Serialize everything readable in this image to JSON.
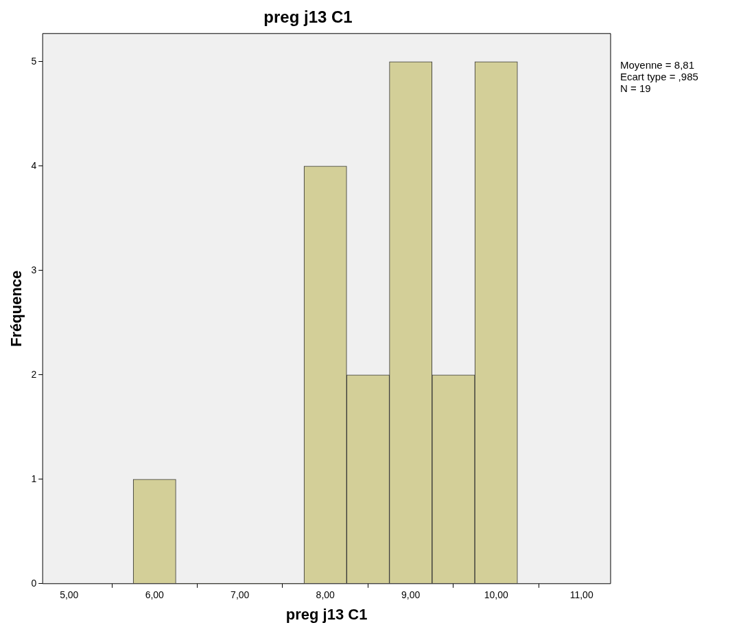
{
  "chart_data": {
    "type": "histogram",
    "title": "preg j13 C1",
    "xlabel": "preg j13 C1",
    "ylabel": "Fréquence",
    "bins": [
      5.75,
      6.25,
      6.75,
      7.25,
      7.75,
      8.25,
      8.75,
      9.25,
      9.75,
      10.25
    ],
    "values": [
      1,
      0,
      0,
      0,
      4,
      2,
      5,
      2,
      5
    ],
    "color": "#d3cf98",
    "xlim": [
      4.69,
      11.34
    ],
    "xticks": [
      {
        "value": 5,
        "label": "5,00"
      },
      {
        "value": 6,
        "label": "6,00"
      },
      {
        "value": 7,
        "label": "7,00"
      },
      {
        "value": 8,
        "label": "8,00"
      },
      {
        "value": 9,
        "label": "9,00"
      },
      {
        "value": 10,
        "label": "10,00"
      },
      {
        "value": 11,
        "label": "11,00"
      }
    ],
    "ylim": [
      0,
      5.27
    ],
    "yticks": [
      0,
      1,
      2,
      3,
      4,
      5
    ],
    "grid": false,
    "legend": false,
    "annotations": [
      "Moyenne = 8,81",
      "Ecart type = ,985",
      "N = 19"
    ]
  }
}
